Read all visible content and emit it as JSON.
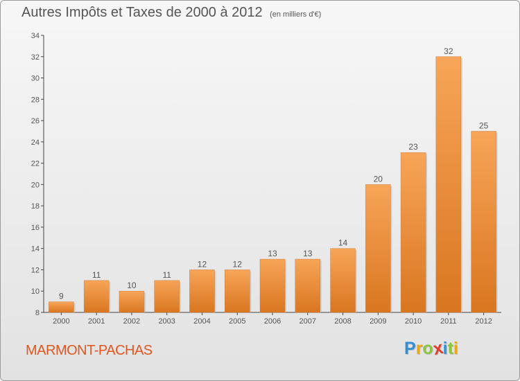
{
  "chart_data": {
    "type": "bar",
    "title": "Autres Impôts et Taxes de 2000 à 2012",
    "unit_note": "(en milliers d'€)",
    "categories": [
      "2000",
      "2001",
      "2002",
      "2003",
      "2004",
      "2005",
      "2006",
      "2007",
      "2008",
      "2009",
      "2010",
      "2011",
      "2012"
    ],
    "values": [
      9,
      11,
      10,
      11,
      12,
      12,
      13,
      13,
      14,
      20,
      23,
      32,
      25
    ],
    "ylim": [
      8,
      34
    ],
    "yticks": [
      "8",
      "10",
      "12",
      "14",
      "16",
      "18",
      "20",
      "22",
      "24",
      "26",
      "28",
      "30",
      "32",
      "34"
    ],
    "grid": false,
    "data_labels": true,
    "xlabel": "",
    "ylabel": ""
  },
  "colors": {
    "bar_top": "#f7a558",
    "bar_bottom": "#d97620",
    "text": "#555555",
    "commune": "#e0561e"
  },
  "commune": "MARMONT-PACHAS",
  "brand": {
    "letters": [
      "P",
      "r",
      "o",
      "x",
      "i",
      "t",
      "i"
    ],
    "letter_colors": [
      "#2f8fd8",
      "#e8a81c",
      "#8cc63e",
      "#e23c2b",
      "#2f8fd8",
      "#8cc63e",
      "#e8a81c"
    ]
  }
}
